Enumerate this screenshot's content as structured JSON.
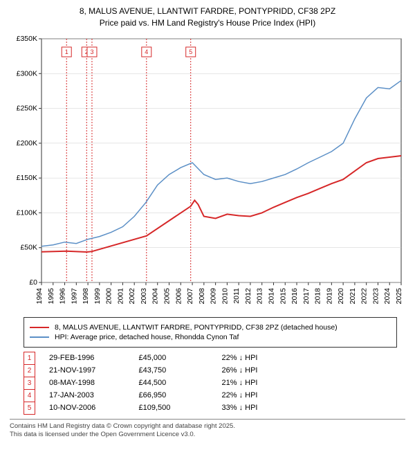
{
  "title_line1": "8, MALUS AVENUE, LLANTWIT FARDRE, PONTYPRIDD, CF38 2PZ",
  "title_line2": "Price paid vs. HM Land Registry's House Price Index (HPI)",
  "chart": {
    "type": "line",
    "background_color": "#ffffff",
    "grid_color": "#cccccc",
    "x_axis": {
      "years": [
        1994,
        1995,
        1996,
        1997,
        1998,
        1999,
        2000,
        2001,
        2002,
        2003,
        2004,
        2005,
        2006,
        2007,
        2008,
        2009,
        2010,
        2011,
        2012,
        2013,
        2014,
        2015,
        2016,
        2017,
        2018,
        2019,
        2020,
        2021,
        2022,
        2023,
        2024,
        2025
      ],
      "min": 1994,
      "max": 2025
    },
    "y_axis": {
      "min": 0,
      "max": 350000,
      "step": 50000,
      "label_prefix": "£",
      "label_suffix": "K",
      "ticks": [
        0,
        50000,
        100000,
        150000,
        200000,
        250000,
        300000,
        350000
      ]
    },
    "series": [
      {
        "name": "price_paid",
        "color": "#d62728",
        "width": 2,
        "points": [
          [
            1994,
            44000
          ],
          [
            1996.16,
            45000
          ],
          [
            1997.89,
            43750
          ],
          [
            1998.35,
            44500
          ],
          [
            2003.05,
            66950
          ],
          [
            2006.86,
            109500
          ],
          [
            2007.2,
            118000
          ],
          [
            2007.5,
            112000
          ],
          [
            2008,
            95000
          ],
          [
            2009,
            92000
          ],
          [
            2010,
            98000
          ],
          [
            2011,
            96000
          ],
          [
            2012,
            95000
          ],
          [
            2013,
            100000
          ],
          [
            2014,
            108000
          ],
          [
            2015,
            115000
          ],
          [
            2016,
            122000
          ],
          [
            2017,
            128000
          ],
          [
            2018,
            135000
          ],
          [
            2019,
            142000
          ],
          [
            2020,
            148000
          ],
          [
            2021,
            160000
          ],
          [
            2022,
            172000
          ],
          [
            2023,
            178000
          ],
          [
            2024,
            180000
          ],
          [
            2025,
            182000
          ]
        ]
      },
      {
        "name": "hpi",
        "color": "#5b8fc6",
        "width": 1.5,
        "points": [
          [
            1994,
            52000
          ],
          [
            1995,
            54000
          ],
          [
            1996,
            58000
          ],
          [
            1997,
            56000
          ],
          [
            1998,
            62000
          ],
          [
            1999,
            66000
          ],
          [
            2000,
            72000
          ],
          [
            2001,
            80000
          ],
          [
            2002,
            95000
          ],
          [
            2003,
            115000
          ],
          [
            2004,
            140000
          ],
          [
            2005,
            155000
          ],
          [
            2006,
            165000
          ],
          [
            2007,
            172000
          ],
          [
            2008,
            155000
          ],
          [
            2009,
            148000
          ],
          [
            2010,
            150000
          ],
          [
            2011,
            145000
          ],
          [
            2012,
            142000
          ],
          [
            2013,
            145000
          ],
          [
            2014,
            150000
          ],
          [
            2015,
            155000
          ],
          [
            2016,
            163000
          ],
          [
            2017,
            172000
          ],
          [
            2018,
            180000
          ],
          [
            2019,
            188000
          ],
          [
            2020,
            200000
          ],
          [
            2021,
            235000
          ],
          [
            2022,
            265000
          ],
          [
            2023,
            280000
          ],
          [
            2024,
            278000
          ],
          [
            2025,
            290000
          ]
        ]
      }
    ],
    "markers": [
      {
        "n": "1",
        "x": 1996.16
      },
      {
        "n": "2",
        "x": 1997.89
      },
      {
        "n": "3",
        "x": 1998.35
      },
      {
        "n": "4",
        "x": 2003.05
      },
      {
        "n": "5",
        "x": 2006.86
      }
    ]
  },
  "legend": [
    {
      "color": "#d62728",
      "label": "8, MALUS AVENUE, LLANTWIT FARDRE, PONTYPRIDD, CF38 2PZ (detached house)"
    },
    {
      "color": "#5b8fc6",
      "label": "HPI: Average price, detached house, Rhondda Cynon Taf"
    }
  ],
  "transactions": [
    {
      "n": "1",
      "date": "29-FEB-1996",
      "price": "£45,000",
      "pct": "22% ↓ HPI"
    },
    {
      "n": "2",
      "date": "21-NOV-1997",
      "price": "£43,750",
      "pct": "26% ↓ HPI"
    },
    {
      "n": "3",
      "date": "08-MAY-1998",
      "price": "£44,500",
      "pct": "21% ↓ HPI"
    },
    {
      "n": "4",
      "date": "17-JAN-2003",
      "price": "£66,950",
      "pct": "22% ↓ HPI"
    },
    {
      "n": "5",
      "date": "10-NOV-2006",
      "price": "£109,500",
      "pct": "33% ↓ HPI"
    }
  ],
  "footer_line1": "Contains HM Land Registry data © Crown copyright and database right 2025.",
  "footer_line2": "This data is licensed under the Open Government Licence v3.0."
}
